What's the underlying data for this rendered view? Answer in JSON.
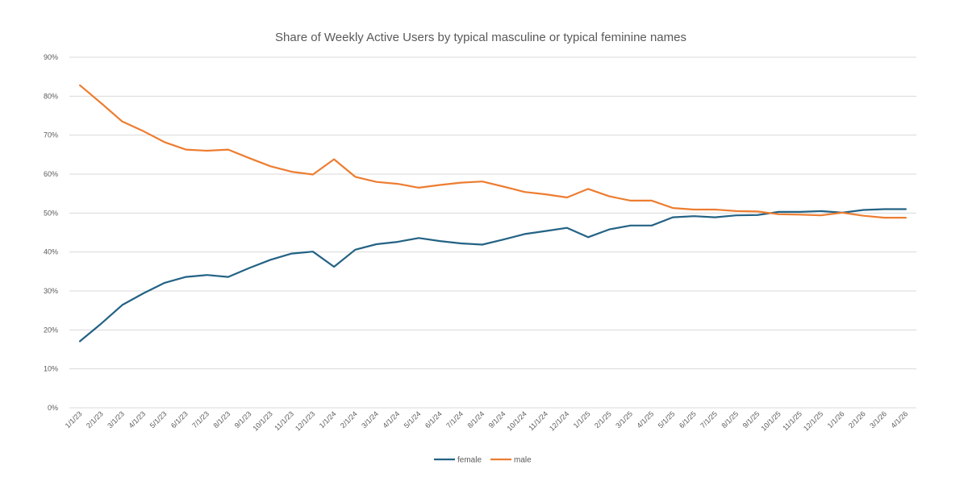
{
  "chart_data": {
    "type": "line",
    "title": "Share of Weekly Active Users by typical masculine or typical feminine names",
    "xlabel": "",
    "ylabel": "",
    "ylim": [
      0,
      90
    ],
    "y_ticks": [
      "0%",
      "10%",
      "20%",
      "30%",
      "40%",
      "50%",
      "60%",
      "70%",
      "80%",
      "90%"
    ],
    "grid": true,
    "legend_position": "bottom",
    "categories": [
      "1/1/23",
      "2/1/23",
      "3/1/23",
      "4/1/23",
      "5/1/23",
      "6/1/23",
      "7/1/23",
      "8/1/23",
      "9/1/23",
      "10/1/23",
      "11/1/23",
      "12/1/23",
      "1/1/24",
      "2/1/24",
      "3/1/24",
      "4/1/24",
      "5/1/24",
      "6/1/24",
      "7/1/24",
      "8/1/24",
      "9/1/24",
      "10/1/24",
      "11/1/24",
      "12/1/24",
      "1/1/25",
      "2/1/25",
      "3/1/25",
      "4/1/25",
      "5/1/25",
      "6/1/25",
      "7/1/25",
      "8/1/25",
      "9/1/25",
      "10/1/25",
      "11/1/25",
      "12/1/25",
      "1/1/26",
      "2/1/26",
      "3/1/26",
      "4/1/26"
    ],
    "series": [
      {
        "name": "female",
        "color": "#236284",
        "values": [
          17.1,
          21.6,
          26.4,
          29.4,
          32.1,
          33.6,
          34.1,
          33.6,
          35.9,
          38.0,
          39.6,
          40.1,
          36.2,
          40.6,
          42.0,
          42.6,
          43.6,
          42.8,
          42.2,
          41.9,
          43.2,
          44.6,
          45.4,
          46.2,
          43.8,
          45.8,
          46.8,
          46.8,
          48.9,
          49.2,
          48.9,
          49.4,
          49.5,
          50.3,
          50.3,
          50.5,
          50.1,
          50.8,
          51.0,
          51.0
        ]
      },
      {
        "name": "male",
        "color": "#ED7D31",
        "values": [
          82.8,
          78.2,
          73.5,
          71.0,
          68.2,
          66.3,
          66.0,
          66.3,
          64.1,
          62.0,
          60.6,
          59.9,
          63.8,
          59.3,
          58.0,
          57.5,
          56.5,
          57.2,
          57.8,
          58.1,
          56.8,
          55.4,
          54.8,
          54.0,
          56.2,
          54.3,
          53.2,
          53.2,
          51.3,
          50.9,
          50.9,
          50.5,
          50.4,
          49.7,
          49.6,
          49.4,
          50.1,
          49.3,
          48.8,
          48.8
        ]
      }
    ]
  }
}
